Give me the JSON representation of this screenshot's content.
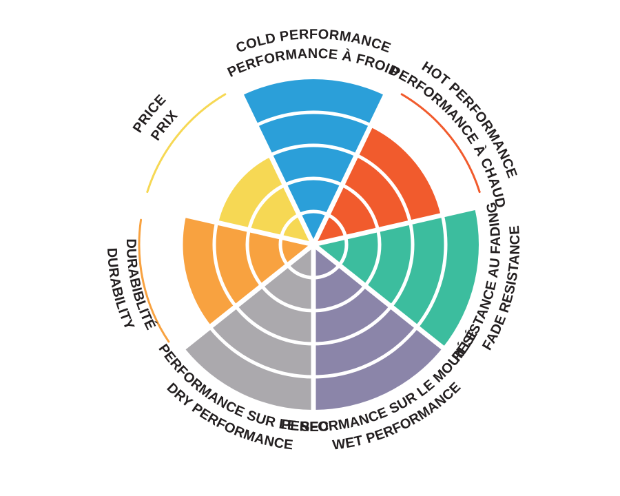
{
  "page": {
    "background": "#FFFFFF"
  },
  "chart_data": {
    "type": "radial-bar",
    "variant": "tire-performance-rating-wheel",
    "rings_max": 5,
    "segment_count": 7,
    "segments_order": "clockwise-from-top",
    "grid": "concentric-ring-dividers",
    "legend_position": "none",
    "text_color": "#231F20",
    "background": "#FFFFFF",
    "categories": [
      {
        "id": "cold",
        "label_en": "COLD PERFORMANCE",
        "label_fr": "PERFORMANCE À FROID",
        "value": 5,
        "color": "#2B9FD9",
        "max_arc": false,
        "label_flip": false
      },
      {
        "id": "hot",
        "label_en": "HOT PERFORMANCE",
        "label_fr": "PERFORMANCE À CHAUD",
        "value": 4,
        "color": "#F15B2D",
        "max_arc": true,
        "label_flip": false
      },
      {
        "id": "fade",
        "label_en": "FADE RESISTANCE",
        "label_fr": "RÉSISTANCE AU FADING",
        "value": 5,
        "color": "#3CBD9E",
        "max_arc": false,
        "label_flip": true
      },
      {
        "id": "wet",
        "label_en": "WET PERFORMANCE",
        "label_fr": "PERFORMANCE SUR LE MOUILLÉ",
        "value": 5,
        "color": "#8B85A9",
        "max_arc": false,
        "label_flip": true
      },
      {
        "id": "dry",
        "label_en": "DRY PERFORMANCE",
        "label_fr": "PERFORMANCE SUR LE SEC",
        "value": 5,
        "color": "#ABA9AD",
        "max_arc": false,
        "label_flip": true
      },
      {
        "id": "durability",
        "label_en": "DURABILITY",
        "label_fr": "DURABIBLITÉ",
        "value": 4,
        "color": "#F8A240",
        "max_arc": true,
        "label_flip": true
      },
      {
        "id": "price",
        "label_en": "PRICE",
        "label_fr": "PRIX",
        "value": 3,
        "color": "#F6D854",
        "max_arc": true,
        "label_flip": false
      }
    ]
  }
}
